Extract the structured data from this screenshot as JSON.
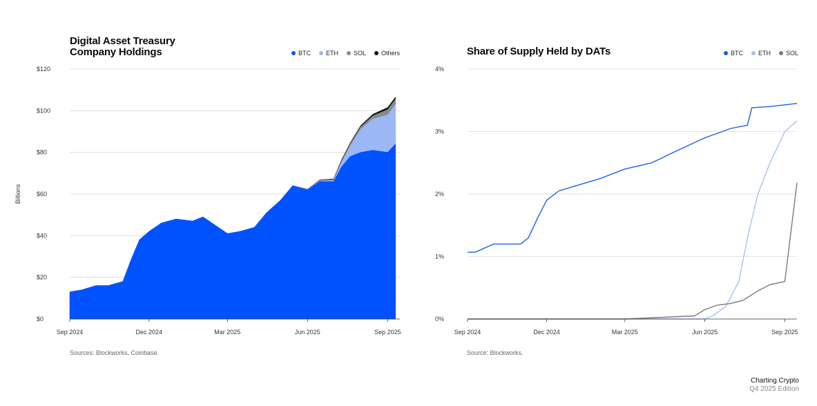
{
  "colors": {
    "btc": "#0052ff",
    "eth": "#9bb7f4",
    "sol": "#8a8a8a",
    "others": "#111111",
    "btc_line": "#1b5ee8",
    "eth_line": "#a7c1f0",
    "sol_line": "#7a7a7a"
  },
  "footer": {
    "brand": "Charting Crypto",
    "edition": "Q4 2025 Edition"
  },
  "chart_data": [
    {
      "type": "area",
      "stacked": true,
      "title": "Digital Asset Treasury Company Holdings",
      "title_lines": [
        "Digital Asset Treasury",
        "Company Holdings"
      ],
      "ylabel": "Billions",
      "ylim": [
        0,
        120
      ],
      "yticks": [
        "$0",
        "$20",
        "$40",
        "$60",
        "$80",
        "$100",
        "$120"
      ],
      "ytick_values": [
        0,
        20,
        40,
        60,
        80,
        100,
        120
      ],
      "xlim": [
        "2024-09-01",
        "2025-09-15"
      ],
      "xticks": [
        "Sep 2024",
        "Dec 2024",
        "Mar 2025",
        "Jun 2025",
        "Sep 2025"
      ],
      "xtick_dates": [
        "2024-09-01",
        "2024-12-01",
        "2025-03-01",
        "2025-06-01",
        "2025-09-01"
      ],
      "legend": "top-right",
      "source": "Sources: Blockworks, Coinbase.",
      "x": [
        "2024-09-01",
        "2024-09-15",
        "2024-10-01",
        "2024-10-15",
        "2024-11-01",
        "2024-11-10",
        "2024-11-20",
        "2024-12-01",
        "2024-12-15",
        "2025-01-01",
        "2025-01-20",
        "2025-02-01",
        "2025-02-15",
        "2025-03-01",
        "2025-03-15",
        "2025-04-01",
        "2025-04-15",
        "2025-05-01",
        "2025-05-15",
        "2025-06-01",
        "2025-06-15",
        "2025-07-01",
        "2025-07-10",
        "2025-07-20",
        "2025-08-01",
        "2025-08-15",
        "2025-09-01",
        "2025-09-10"
      ],
      "series": [
        {
          "name": "BTC",
          "values": [
            13,
            14,
            16,
            16,
            18,
            28,
            38,
            42,
            46,
            48,
            47,
            49,
            45,
            41,
            42,
            44,
            51,
            57,
            64,
            62,
            66,
            66,
            73,
            78,
            80,
            81,
            80,
            84
          ]
        },
        {
          "name": "ETH",
          "values": [
            0,
            0,
            0,
            0,
            0,
            0,
            0,
            0,
            0,
            0,
            0,
            0,
            0,
            0,
            0,
            0,
            0,
            0,
            0,
            0,
            0.3,
            0.5,
            2,
            5,
            11,
            15,
            18,
            19
          ]
        },
        {
          "name": "SOL",
          "values": [
            0,
            0,
            0,
            0,
            0,
            0,
            0,
            0,
            0,
            0,
            0,
            0,
            0,
            0,
            0,
            0,
            0,
            0,
            0,
            0.2,
            0.3,
            0.5,
            0.8,
            1,
            1.2,
            1.5,
            2.5,
            2.5
          ]
        },
        {
          "name": "Others",
          "values": [
            0,
            0,
            0,
            0,
            0,
            0,
            0,
            0,
            0,
            0,
            0,
            0,
            0,
            0,
            0,
            0,
            0,
            0,
            0,
            0.1,
            0.2,
            0.3,
            0.5,
            0.5,
            0.6,
            0.8,
            1,
            1
          ]
        }
      ]
    },
    {
      "type": "line",
      "title": "Share of Supply Held by DATs",
      "ylim": [
        0,
        4
      ],
      "yticks": [
        "0%",
        "1%",
        "2%",
        "3%",
        "4%"
      ],
      "ytick_values": [
        0,
        1,
        2,
        3,
        4
      ],
      "xlim": [
        "2024-09-01",
        "2025-09-15"
      ],
      "xticks": [
        "Sep 2024",
        "Dec 2024",
        "Mar 2025",
        "Jun 2025",
        "Sep 2025"
      ],
      "xtick_dates": [
        "2024-09-01",
        "2024-12-01",
        "2025-03-01",
        "2025-06-01",
        "2025-09-01"
      ],
      "legend": "top-right",
      "source": "Source: Blockworks.",
      "series": [
        {
          "name": "BTC",
          "x": [
            "2024-09-01",
            "2024-09-10",
            "2024-10-01",
            "2024-11-01",
            "2024-11-10",
            "2024-11-20",
            "2024-12-01",
            "2024-12-15",
            "2025-01-01",
            "2025-02-01",
            "2025-03-01",
            "2025-04-01",
            "2025-05-01",
            "2025-06-01",
            "2025-07-01",
            "2025-07-20",
            "2025-07-25",
            "2025-08-15",
            "2025-09-15"
          ],
          "values": [
            1.07,
            1.07,
            1.2,
            1.2,
            1.3,
            1.6,
            1.9,
            2.05,
            2.12,
            2.25,
            2.4,
            2.5,
            2.7,
            2.9,
            3.05,
            3.1,
            3.38,
            3.4,
            3.45
          ]
        },
        {
          "name": "ETH",
          "x": [
            "2024-09-01",
            "2025-06-01",
            "2025-06-10",
            "2025-06-25",
            "2025-07-10",
            "2025-07-20",
            "2025-08-01",
            "2025-08-15",
            "2025-09-01",
            "2025-09-15"
          ],
          "values": [
            0,
            0,
            0.05,
            0.2,
            0.6,
            1.3,
            2.0,
            2.5,
            3.0,
            3.17
          ]
        },
        {
          "name": "SOL",
          "x": [
            "2024-09-01",
            "2025-03-01",
            "2025-05-20",
            "2025-06-01",
            "2025-06-15",
            "2025-07-01",
            "2025-07-15",
            "2025-08-01",
            "2025-08-15",
            "2025-09-01",
            "2025-09-05",
            "2025-09-15"
          ],
          "values": [
            0,
            0,
            0.05,
            0.15,
            0.22,
            0.25,
            0.3,
            0.45,
            0.55,
            0.6,
            1.05,
            2.18
          ]
        }
      ]
    }
  ]
}
